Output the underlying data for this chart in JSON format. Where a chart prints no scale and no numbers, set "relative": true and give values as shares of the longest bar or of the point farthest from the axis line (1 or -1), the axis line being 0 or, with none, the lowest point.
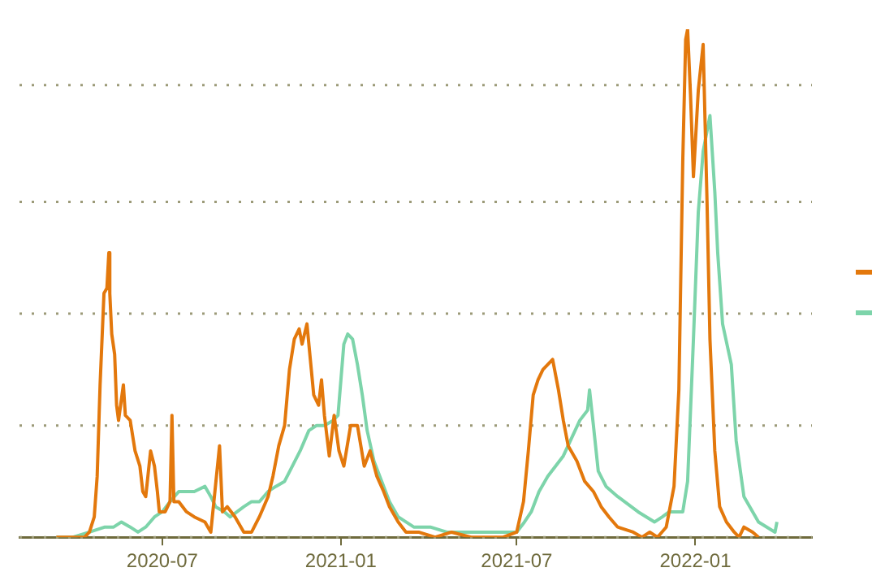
{
  "chart_data": {
    "type": "line",
    "relative": true,
    "tick_labels": "x",
    "ref_lines": [
      {
        "axis": "y",
        "value": 0,
        "color": "#9c9a78",
        "line_style": "dotted"
      },
      {
        "axis": "y",
        "value": 0.22,
        "color": "#9c9a78",
        "line_style": "dotted"
      },
      {
        "axis": "y",
        "value": 0.44,
        "color": "#9c9a78",
        "line_style": "dotted"
      },
      {
        "axis": "y",
        "value": 0.66,
        "color": "#9c9a78",
        "line_style": "dotted"
      },
      {
        "axis": "y",
        "value": 0.89,
        "color": "#9c9a78",
        "line_style": "dotted"
      }
    ],
    "marker": "none",
    "line_style": "solid",
    "xlim": [
      "2020-02-05",
      "2022-05-01"
    ],
    "xticks": [
      "2020-07",
      "2021-01",
      "2021-07",
      "2022-01"
    ],
    "series": [
      {
        "color": "#e3780c",
        "x": [
          "2020-03-14",
          "2020-04-12",
          "2020-04-17",
          "2020-04-22",
          "2020-04-25",
          "2020-04-28",
          "2020-05-02",
          "2020-05-05",
          "2020-05-07",
          "2020-05-08",
          "2020-05-10",
          "2020-05-13",
          "2020-05-15",
          "2020-05-17",
          "2020-05-22",
          "2020-05-24",
          "2020-05-29",
          "2020-06-03",
          "2020-06-08",
          "2020-06-11",
          "2020-06-14",
          "2020-06-19",
          "2020-06-23",
          "2020-06-26",
          "2020-06-28",
          "2020-07-04",
          "2020-07-09",
          "2020-07-11",
          "2020-07-13",
          "2020-07-18",
          "2020-07-26",
          "2020-08-03",
          "2020-08-14",
          "2020-08-20",
          "2020-08-29",
          "2020-09-01",
          "2020-09-06",
          "2020-09-14",
          "2020-09-23",
          "2020-10-01",
          "2020-10-09",
          "2020-10-18",
          "2020-10-23",
          "2020-10-29",
          "2020-11-04",
          "2020-11-09",
          "2020-11-14",
          "2020-11-19",
          "2020-11-22",
          "2020-11-27",
          "2020-12-04",
          "2020-12-09",
          "2020-12-12",
          "2020-12-15",
          "2020-12-20",
          "2020-12-25",
          "2020-12-30",
          "2021-01-04",
          "2021-01-11",
          "2021-01-18",
          "2021-01-25",
          "2021-01-31",
          "2021-02-07",
          "2021-02-14",
          "2021-02-20",
          "2021-03-01",
          "2021-03-09",
          "2021-03-22",
          "2021-04-08",
          "2021-04-25",
          "2021-05-15",
          "2021-06-01",
          "2021-06-17",
          "2021-07-01",
          "2021-07-08",
          "2021-07-13",
          "2021-07-18",
          "2021-07-23",
          "2021-07-28",
          "2021-08-02",
          "2021-08-07",
          "2021-08-13",
          "2021-08-18",
          "2021-08-23",
          "2021-09-01",
          "2021-09-09",
          "2021-09-18",
          "2021-09-26",
          "2021-10-04",
          "2021-10-13",
          "2021-10-29",
          "2021-11-07",
          "2021-11-15",
          "2021-11-23",
          "2021-12-02",
          "2021-12-10",
          "2021-12-15",
          "2021-12-19",
          "2021-12-22",
          "2021-12-24",
          "2021-12-27",
          "2021-12-30",
          "2022-01-04",
          "2022-01-09",
          "2022-01-13",
          "2022-01-16",
          "2022-01-21",
          "2022-01-26",
          "2022-02-02",
          "2022-02-10",
          "2022-02-15",
          "2022-02-20",
          "2022-03-01",
          "2022-03-07"
        ],
        "values": [
          0,
          0,
          0.01,
          0.04,
          0.12,
          0.3,
          0.48,
          0.49,
          0.56,
          0.48,
          0.4,
          0.36,
          0.26,
          0.23,
          0.3,
          0.24,
          0.23,
          0.17,
          0.14,
          0.09,
          0.08,
          0.17,
          0.14,
          0.09,
          0.05,
          0.05,
          0.07,
          0.24,
          0.07,
          0.07,
          0.05,
          0.04,
          0.03,
          0.01,
          0.18,
          0.05,
          0.06,
          0.04,
          0.01,
          0.01,
          0.04,
          0.08,
          0.12,
          0.18,
          0.22,
          0.33,
          0.39,
          0.41,
          0.38,
          0.42,
          0.28,
          0.26,
          0.31,
          0.24,
          0.16,
          0.24,
          0.17,
          0.14,
          0.22,
          0.22,
          0.14,
          0.17,
          0.12,
          0.09,
          0.06,
          0.03,
          0.01,
          0.01,
          0,
          0.01,
          0,
          0,
          0,
          0.01,
          0.07,
          0.17,
          0.28,
          0.31,
          0.33,
          0.34,
          0.35,
          0.29,
          0.23,
          0.18,
          0.15,
          0.11,
          0.09,
          0.06,
          0.04,
          0.02,
          0.01,
          0,
          0.01,
          0,
          0.02,
          0.1,
          0.29,
          0.74,
          0.98,
          1,
          0.87,
          0.71,
          0.88,
          0.97,
          0.66,
          0.39,
          0.17,
          0.06,
          0.03,
          0.01,
          0,
          0.02,
          0.01,
          0
        ]
      },
      {
        "color": "#7dd4aa",
        "x": [
          "2020-03-14",
          "2020-03-31",
          "2020-04-17",
          "2020-05-03",
          "2020-05-12",
          "2020-05-20",
          "2020-05-29",
          "2020-06-06",
          "2020-06-14",
          "2020-06-23",
          "2020-07-01",
          "2020-07-09",
          "2020-07-18",
          "2020-07-26",
          "2020-08-03",
          "2020-08-14",
          "2020-08-20",
          "2020-08-25",
          "2020-09-03",
          "2020-09-09",
          "2020-09-16",
          "2020-09-23",
          "2020-10-01",
          "2020-10-09",
          "2020-10-18",
          "2020-10-26",
          "2020-11-04",
          "2020-11-12",
          "2020-11-20",
          "2020-11-29",
          "2020-12-07",
          "2020-12-15",
          "2020-12-24",
          "2020-12-29",
          "2021-01-01",
          "2021-01-04",
          "2021-01-08",
          "2021-01-13",
          "2021-01-18",
          "2021-01-23",
          "2021-01-28",
          "2021-02-04",
          "2021-02-12",
          "2021-02-20",
          "2021-03-01",
          "2021-03-09",
          "2021-03-17",
          "2021-04-03",
          "2021-04-20",
          "2021-05-15",
          "2021-06-01",
          "2021-06-17",
          "2021-07-01",
          "2021-07-09",
          "2021-07-16",
          "2021-07-24",
          "2021-08-02",
          "2021-08-18",
          "2021-09-04",
          "2021-09-12",
          "2021-09-14",
          "2021-09-18",
          "2021-09-23",
          "2021-10-01",
          "2021-10-13",
          "2021-11-03",
          "2021-11-20",
          "2021-11-28",
          "2021-12-05",
          "2021-12-19",
          "2021-12-24",
          "2021-12-30",
          "2022-01-04",
          "2022-01-09",
          "2022-01-16",
          "2022-01-21",
          "2022-01-24",
          "2022-01-29",
          "2022-02-07",
          "2022-02-12",
          "2022-02-20",
          "2022-03-07",
          "2022-03-24",
          "2022-03-26"
        ],
        "values": [
          0,
          0,
          0.01,
          0.02,
          0.02,
          0.03,
          0.02,
          0.01,
          0.02,
          0.04,
          0.05,
          0.07,
          0.09,
          0.09,
          0.09,
          0.1,
          0.08,
          0.06,
          0.05,
          0.04,
          0.05,
          0.06,
          0.07,
          0.07,
          0.09,
          0.1,
          0.11,
          0.14,
          0.17,
          0.21,
          0.22,
          0.22,
          0.23,
          0.24,
          0.31,
          0.38,
          0.4,
          0.39,
          0.34,
          0.28,
          0.21,
          0.15,
          0.11,
          0.07,
          0.04,
          0.03,
          0.02,
          0.02,
          0.01,
          0.01,
          0.01,
          0.01,
          0.01,
          0.03,
          0.05,
          0.09,
          0.12,
          0.16,
          0.23,
          0.25,
          0.29,
          0.22,
          0.13,
          0.1,
          0.08,
          0.05,
          0.03,
          0.04,
          0.05,
          0.05,
          0.11,
          0.39,
          0.64,
          0.76,
          0.83,
          0.68,
          0.56,
          0.42,
          0.34,
          0.19,
          0.08,
          0.03,
          0.01,
          0.03
        ]
      }
    ]
  }
}
